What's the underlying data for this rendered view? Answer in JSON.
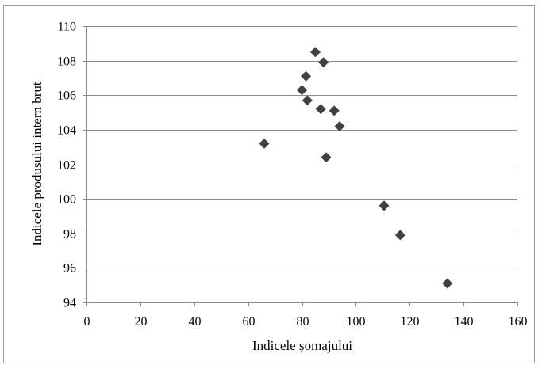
{
  "chart_data": {
    "type": "scatter",
    "title": "",
    "xlabel": "Indicele șomajului",
    "ylabel": "Indicele produsului intern brut",
    "xlim": [
      0,
      160
    ],
    "ylim": [
      94,
      110
    ],
    "x_ticks": [
      0,
      20,
      40,
      60,
      80,
      100,
      120,
      140,
      160
    ],
    "y_ticks": [
      94,
      96,
      98,
      100,
      102,
      104,
      106,
      108,
      110
    ],
    "grid": "horizontal",
    "legend": "none",
    "marker": "diamond",
    "colors": {
      "marker": "#404040",
      "grid": "#8c8c8c",
      "axis": "#8c8c8c",
      "frame": "#9a9a9a"
    },
    "points": [
      {
        "x": 66,
        "y": 103.2
      },
      {
        "x": 80,
        "y": 106.3
      },
      {
        "x": 81.5,
        "y": 107.1
      },
      {
        "x": 82,
        "y": 105.7
      },
      {
        "x": 85,
        "y": 108.5
      },
      {
        "x": 87,
        "y": 105.2
      },
      {
        "x": 88,
        "y": 107.9
      },
      {
        "x": 89,
        "y": 102.4
      },
      {
        "x": 92,
        "y": 105.1
      },
      {
        "x": 94,
        "y": 104.2
      },
      {
        "x": 110.5,
        "y": 99.6
      },
      {
        "x": 116.5,
        "y": 97.9
      },
      {
        "x": 134,
        "y": 95.1
      }
    ]
  }
}
